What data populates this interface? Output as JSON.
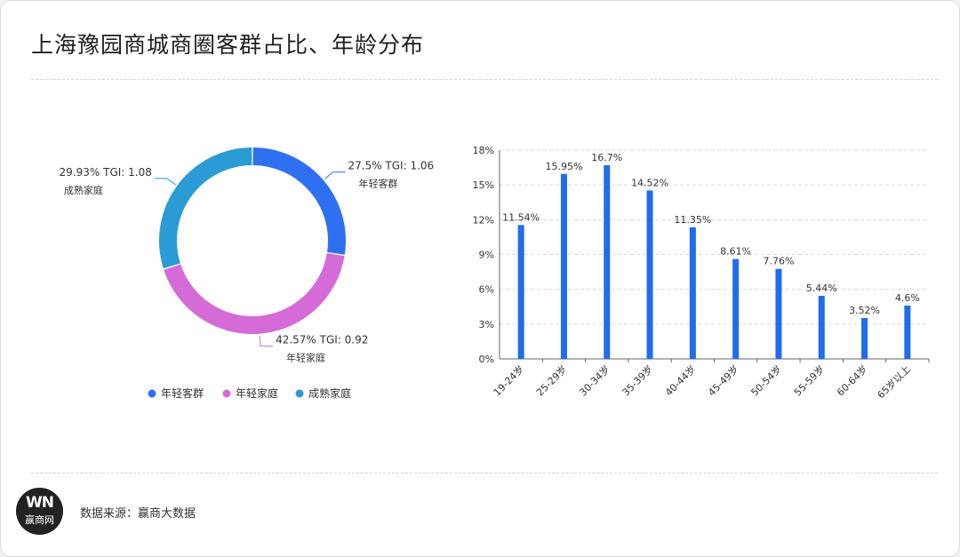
{
  "title": "上海豫园商城商圈客群占比、年龄分布",
  "source_text": "数据来源：赢商大数据",
  "logo": {
    "mark": "WN",
    "text": "赢商网"
  },
  "chart_data": [
    {
      "type": "pie",
      "variant": "donut",
      "categories": [
        "年轻客群",
        "年轻家庭",
        "成熟家庭"
      ],
      "values": [
        27.5,
        42.57,
        29.93
      ],
      "value_labels": [
        "27.5% TGI: 1.06",
        "42.57% TGI: 0.92",
        "29.93% TGI: 1.08"
      ],
      "tgi": [
        1.06,
        0.92,
        1.08
      ],
      "colors": [
        "#2f6ff2",
        "#d56bd7",
        "#2a9bd5"
      ],
      "legend": {
        "position": "bottom",
        "items": [
          "年轻客群",
          "年轻家庭",
          "成熟家庭"
        ]
      }
    },
    {
      "type": "bar",
      "categories": [
        "19-24岁",
        "25-29岁",
        "30-34岁",
        "35-39岁",
        "40-44岁",
        "45-49岁",
        "50-54岁",
        "55-59岁",
        "60-64岁",
        "65岁以上"
      ],
      "values": [
        11.54,
        15.95,
        16.7,
        14.52,
        11.35,
        8.61,
        7.76,
        5.44,
        3.52,
        4.6
      ],
      "value_labels": [
        "11.54%",
        "15.95%",
        "16.7%",
        "14.52%",
        "11.35%",
        "8.61%",
        "7.76%",
        "5.44%",
        "3.52%",
        "4.6%"
      ],
      "yticks": [
        "0%",
        "3%",
        "6%",
        "9%",
        "12%",
        "15%",
        "18%"
      ],
      "ylim": [
        0,
        18
      ],
      "grid": true,
      "bar_color": "#1f6cf0"
    }
  ]
}
